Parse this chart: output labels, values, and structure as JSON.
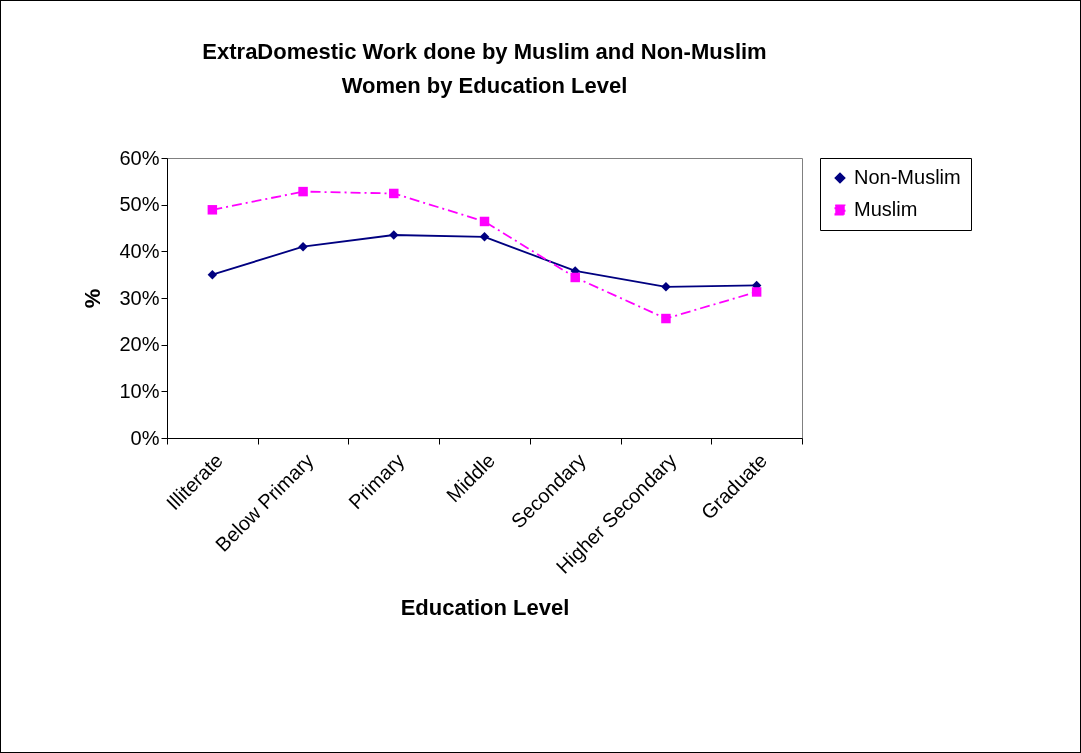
{
  "chart_data": {
    "type": "line",
    "title": [
      "ExtraDomestic Work done by Muslim and Non-Muslim",
      "Women by Education Level"
    ],
    "xlabel": "Education Level",
    "ylabel": "%",
    "categories": [
      "Illiterate",
      "Below Primary",
      "Primary",
      "Middle",
      "Secondary",
      "Higher Secondary",
      "Graduate"
    ],
    "series": [
      {
        "name": "Non-Muslim",
        "color": "#000080",
        "marker": "diamond",
        "line_style": "solid",
        "values": [
          35.0,
          41.0,
          43.5,
          43.1,
          35.8,
          32.4,
          32.7
        ]
      },
      {
        "name": "Muslim",
        "color": "#ff00ff",
        "marker": "square",
        "line_style": "dashdot",
        "values": [
          48.9,
          52.8,
          52.4,
          46.4,
          34.4,
          25.6,
          31.3
        ]
      }
    ],
    "ylim": [
      0,
      60
    ],
    "yticks": [
      {
        "value": 0,
        "label": "0%"
      },
      {
        "value": 10,
        "label": "10%"
      },
      {
        "value": 20,
        "label": "20%"
      },
      {
        "value": 30,
        "label": "30%"
      },
      {
        "value": 40,
        "label": "40%"
      },
      {
        "value": 50,
        "label": "50%"
      },
      {
        "value": 60,
        "label": "60%"
      }
    ],
    "grid": false,
    "legend": "right"
  }
}
